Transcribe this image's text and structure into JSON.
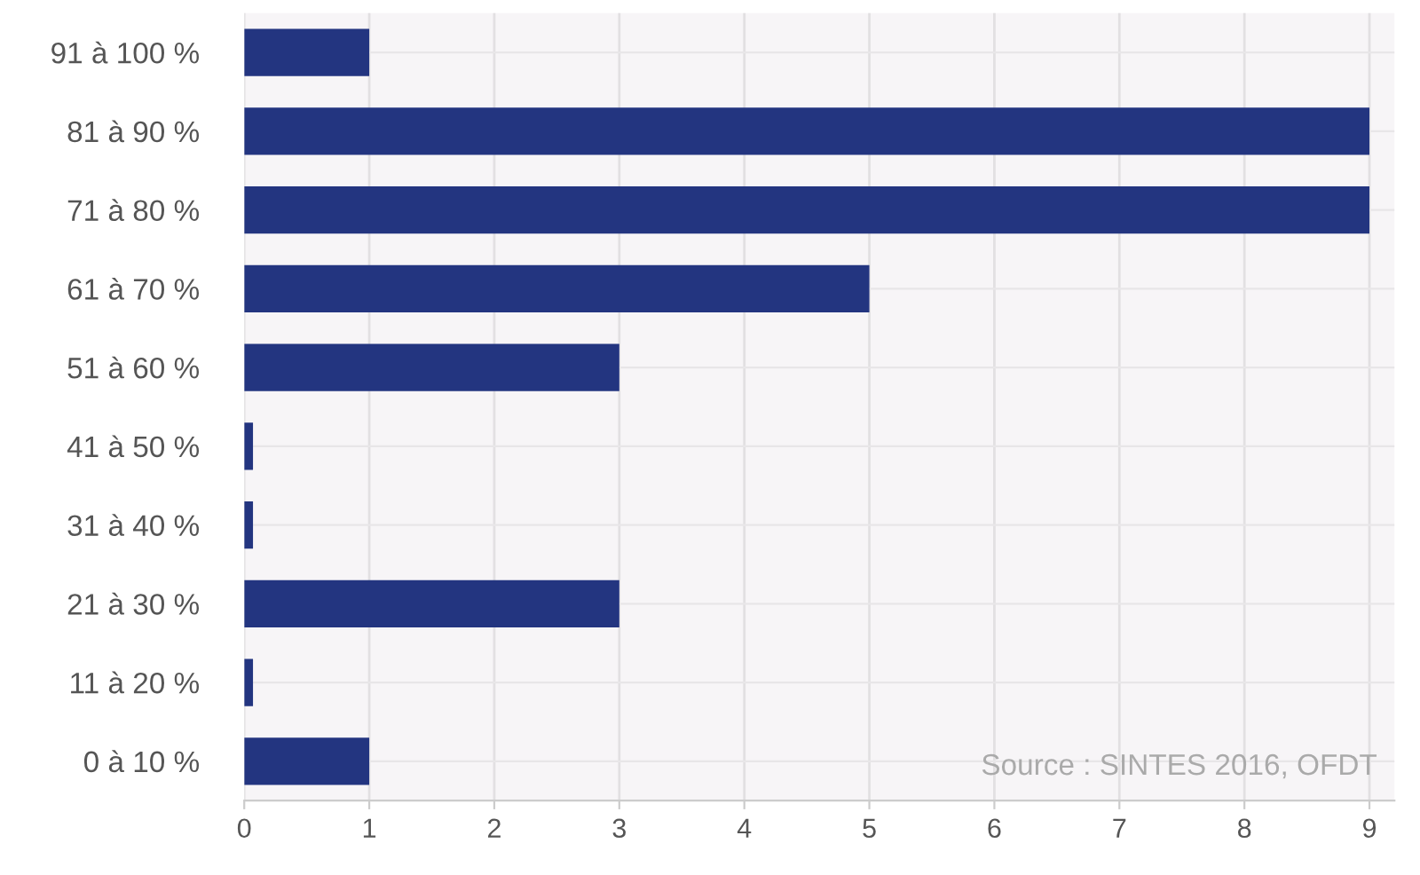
{
  "chart_data": {
    "type": "bar",
    "orientation": "horizontal",
    "categories": [
      "91 à 100 %",
      "81 à 90 %",
      "71 à 80 %",
      "61 à 70 %",
      "51 à 60 %",
      "41 à 50 %",
      "31 à 40 %",
      "21 à 30 %",
      "11 à 20 %",
      "0 à 10 %"
    ],
    "values": [
      1,
      9,
      9,
      5,
      3,
      0.07,
      0.07,
      3,
      0.07,
      1
    ],
    "color": "#233580",
    "xlim": [
      0,
      9.2
    ],
    "xticks": [
      0,
      1,
      2,
      3,
      4,
      5,
      6,
      7,
      8,
      9
    ],
    "grid": true,
    "legend": false,
    "annotations": [
      "Source : SINTES 2016, OFDT"
    ]
  }
}
